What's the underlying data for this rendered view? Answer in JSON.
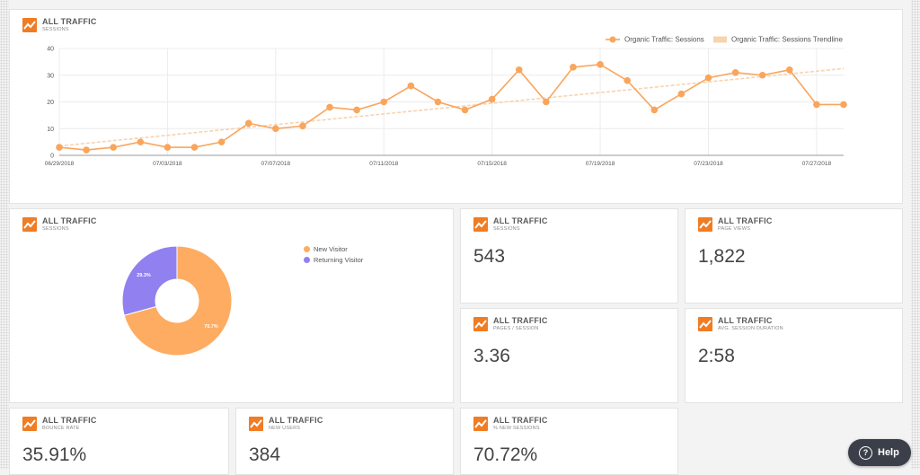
{
  "card_title": "ALL TRAFFIC",
  "colors": {
    "accent": "#f07c23",
    "series": "#f9a55c",
    "trend": "#f7d3b0",
    "returning": "#9180f0",
    "new": "#fdac61"
  },
  "line_card": {
    "subtitle": "SESSIONS"
  },
  "chart_data": [
    {
      "type": "line",
      "series": [
        {
          "name": "Organic Traffic: Sessions",
          "x": [
            "06/29/2018",
            "06/30/2018",
            "07/01/2018",
            "07/02/2018",
            "07/03/2018",
            "07/04/2018",
            "07/05/2018",
            "07/06/2018",
            "07/07/2018",
            "07/08/2018",
            "07/09/2018",
            "07/10/2018",
            "07/11/2018",
            "07/12/2018",
            "07/13/2018",
            "07/14/2018",
            "07/15/2018",
            "07/16/2018",
            "07/17/2018",
            "07/18/2018",
            "07/19/2018",
            "07/20/2018",
            "07/21/2018",
            "07/22/2018",
            "07/23/2018",
            "07/24/2018",
            "07/25/2018",
            "07/26/2018",
            "07/27/2018",
            "07/28/2018"
          ],
          "values": [
            3,
            2,
            3,
            5,
            3,
            3,
            5,
            12,
            10,
            11,
            18,
            17,
            20,
            26,
            20,
            17,
            21,
            32,
            20,
            33,
            34,
            28,
            17,
            23,
            29,
            31,
            30,
            32,
            19,
            19
          ]
        },
        {
          "name": "Organic Traffic: Sessions Trendline",
          "values": [
            3.5,
            32.5
          ]
        }
      ],
      "x_tick_labels": [
        "06/29/2018",
        "07/03/2018",
        "07/07/2018",
        "07/11/2018",
        "07/15/2018",
        "07/19/2018",
        "07/23/2018",
        "07/27/2018"
      ],
      "y_tick_labels": [
        "0",
        "10",
        "20",
        "30",
        "40"
      ],
      "ylim": [
        0,
        40
      ],
      "grid": true,
      "legend": "top-right"
    },
    {
      "type": "pie",
      "categories": [
        "New Visitor",
        "Returning Visitor"
      ],
      "values": [
        70.7,
        29.3
      ],
      "data_labels": [
        "70.7%",
        "29.3%"
      ],
      "legend": "right"
    }
  ],
  "pie_card": {
    "subtitle": "SESSIONS"
  },
  "metrics": [
    {
      "subtitle": "SESSIONS",
      "value": "543"
    },
    {
      "subtitle": "PAGE VIEWS",
      "value": "1,822"
    },
    {
      "subtitle": "PAGES / SESSION",
      "value": "3.36"
    },
    {
      "subtitle": "AVG. SESSION DURATION",
      "value": "2:58"
    },
    {
      "subtitle": "BOUNCE RATE",
      "value": "35.91%"
    },
    {
      "subtitle": "NEW USERS",
      "value": "384"
    },
    {
      "subtitle": "% NEW SESSIONS",
      "value": "70.72%"
    }
  ],
  "help": {
    "label": "Help",
    "icon": "?"
  }
}
